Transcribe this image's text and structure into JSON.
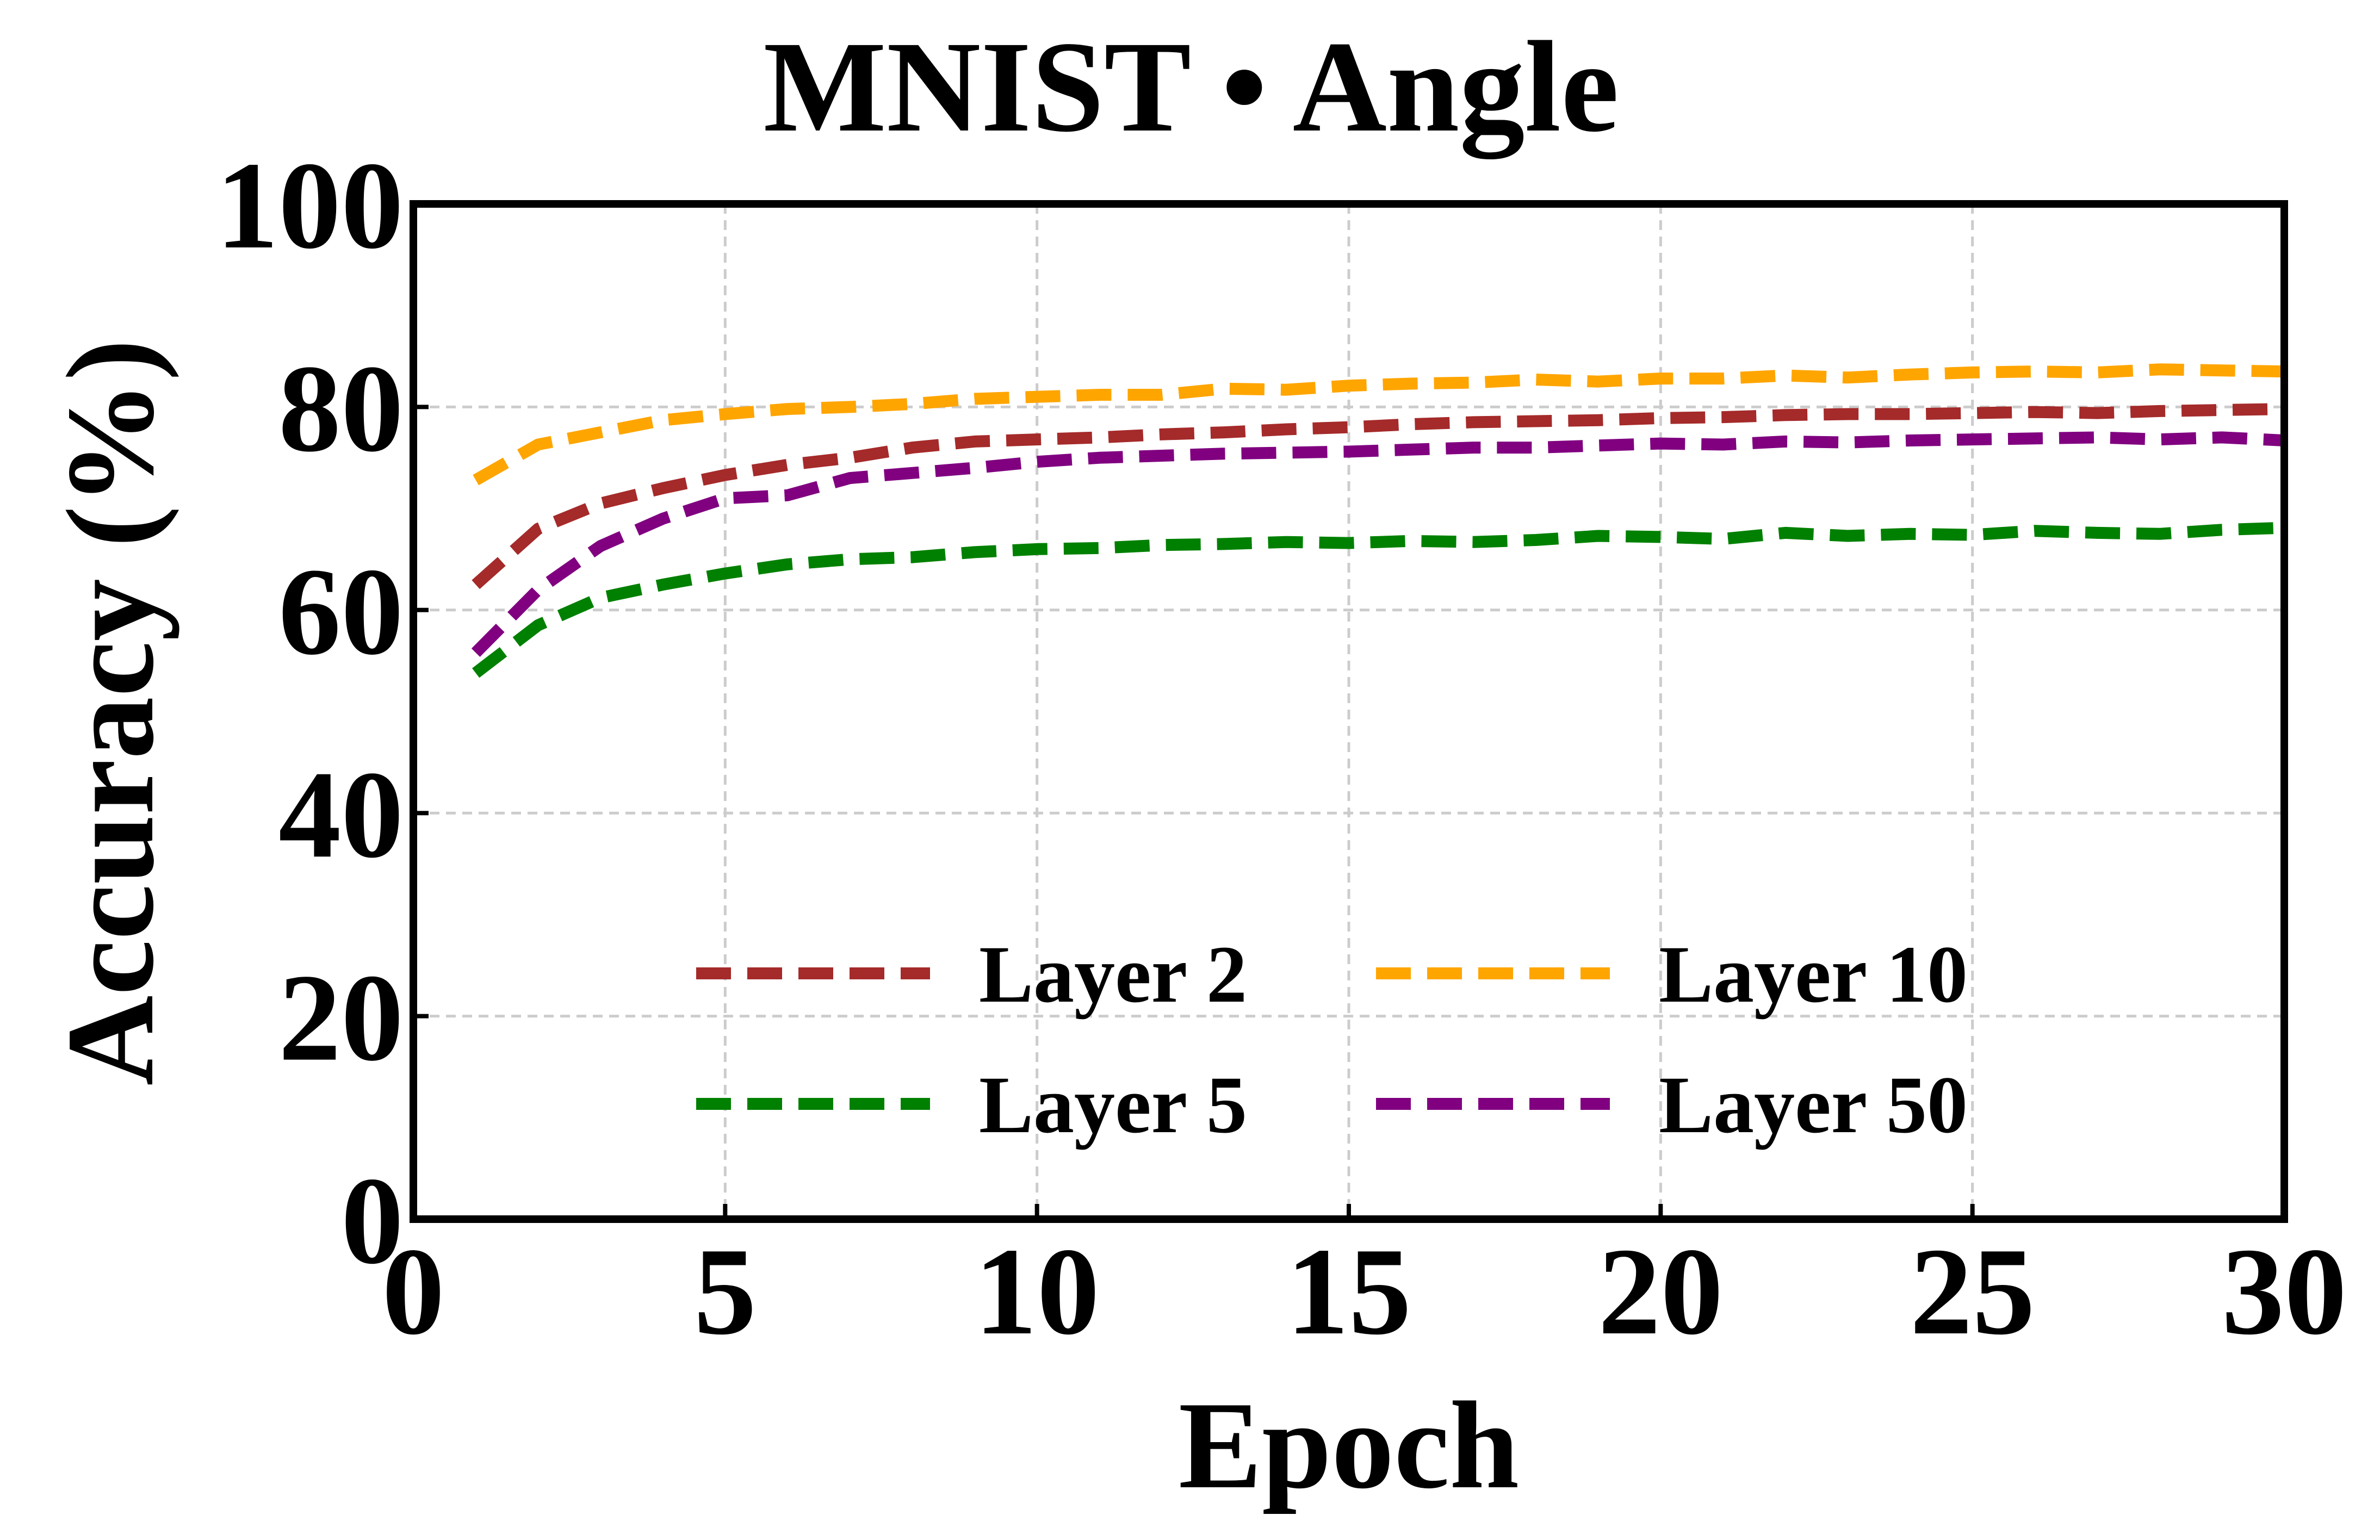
{
  "chart_data": {
    "type": "line",
    "title": "MNIST • Angle",
    "xlabel": "Epoch",
    "ylabel": "Accuracy (%)",
    "xlim": [
      0,
      30
    ],
    "ylim": [
      0,
      100
    ],
    "xticks": [
      0,
      5,
      10,
      15,
      20,
      25,
      30
    ],
    "yticks": [
      0,
      20,
      40,
      60,
      80,
      100
    ],
    "grid": true,
    "legend_position": "lower-center",
    "x": [
      1,
      2,
      3,
      4,
      5,
      6,
      7,
      8,
      9,
      10,
      11,
      12,
      13,
      14,
      15,
      16,
      17,
      18,
      19,
      20,
      21,
      22,
      23,
      24,
      25,
      26,
      27,
      28,
      29,
      30
    ],
    "series": [
      {
        "name": "Layer 2",
        "color": "#a52a2a",
        "style": "dashed",
        "values": [
          62.5,
          68.0,
          70.5,
          72.0,
          73.3,
          74.3,
          75.0,
          76.0,
          76.6,
          76.8,
          77.0,
          77.3,
          77.5,
          77.8,
          78.0,
          78.3,
          78.5,
          78.6,
          78.7,
          78.9,
          79.0,
          79.2,
          79.3,
          79.3,
          79.4,
          79.5,
          79.4,
          79.6,
          79.7,
          79.8
        ]
      },
      {
        "name": "Layer 10",
        "color": "#ffa500",
        "style": "dashed",
        "values": [
          72.8,
          76.3,
          77.5,
          78.7,
          79.3,
          79.8,
          80.0,
          80.3,
          80.8,
          81.0,
          81.2,
          81.2,
          81.8,
          81.7,
          82.1,
          82.3,
          82.4,
          82.7,
          82.5,
          82.8,
          82.8,
          83.1,
          82.9,
          83.2,
          83.4,
          83.5,
          83.4,
          83.7,
          83.6,
          83.5
        ]
      },
      {
        "name": "Layer 5",
        "color": "#008000",
        "style": "dashed",
        "values": [
          53.8,
          58.5,
          61.2,
          62.5,
          63.6,
          64.5,
          65.0,
          65.2,
          65.7,
          66.0,
          66.1,
          66.4,
          66.5,
          66.7,
          66.6,
          66.8,
          66.7,
          66.9,
          67.3,
          67.2,
          67.0,
          67.6,
          67.3,
          67.5,
          67.4,
          67.8,
          67.6,
          67.5,
          67.9,
          68.1
        ]
      },
      {
        "name": "Layer 50",
        "color": "#800080",
        "style": "dashed",
        "values": [
          55.8,
          62.0,
          66.3,
          69.0,
          71.0,
          71.3,
          73.0,
          73.5,
          74.0,
          74.6,
          75.0,
          75.2,
          75.4,
          75.5,
          75.6,
          75.8,
          76.0,
          76.0,
          76.2,
          76.4,
          76.3,
          76.6,
          76.5,
          76.7,
          76.8,
          76.9,
          77.0,
          76.8,
          77.0,
          76.7
        ]
      }
    ],
    "legend_order": [
      "Layer 2",
      "Layer 10",
      "Layer 5",
      "Layer 50"
    ]
  }
}
